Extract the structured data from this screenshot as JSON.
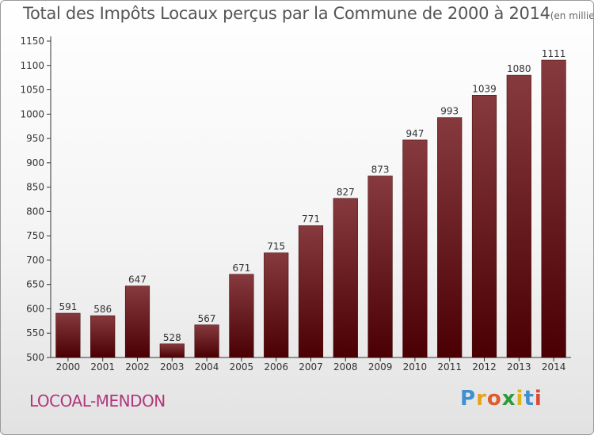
{
  "title": {
    "main": "Total des Impôts Locaux perçus par la Commune de 2000 à 2014",
    "unit": "(en milliers d'€)"
  },
  "commune": "LOCOAL-MENDON",
  "logo": {
    "letters": [
      "P",
      "r",
      "o",
      "x",
      "i",
      "t",
      "i"
    ],
    "colors": [
      "#3f8fd1",
      "#e8a21a",
      "#e05a2a",
      "#2f9a3a",
      "#e0b21a",
      "#3f8fd1",
      "#d94a3a"
    ]
  },
  "colors": {
    "bar_top": "#863a3e",
    "bar_bottom": "#4a0002",
    "axis": "#333333",
    "text": "#333333"
  },
  "chart_data": {
    "type": "bar",
    "title": "Total des Impôts Locaux perçus par la Commune de 2000 à 2014",
    "xlabel": "",
    "ylabel": "",
    "categories": [
      "2000",
      "2001",
      "2002",
      "2003",
      "2004",
      "2005",
      "2006",
      "2007",
      "2008",
      "2009",
      "2010",
      "2011",
      "2012",
      "2013",
      "2014"
    ],
    "values": [
      591,
      586,
      647,
      528,
      567,
      671,
      715,
      771,
      827,
      873,
      947,
      993,
      1039,
      1080,
      1111
    ],
    "ylim": [
      500,
      1150
    ],
    "yticks": [
      500,
      550,
      600,
      650,
      700,
      750,
      800,
      850,
      900,
      950,
      1000,
      1050,
      1100,
      1150
    ],
    "grid": false,
    "data_labels": true
  }
}
